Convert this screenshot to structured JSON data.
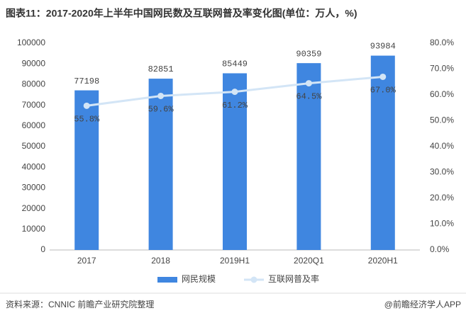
{
  "chart_data": {
    "type": "bar-line",
    "title": "图表11：2017-2020年上半年中国网民数及互联网普及率变化图(单位：万人，%)",
    "categories": [
      "2017",
      "2018",
      "2019H1",
      "2020Q1",
      "2020H1"
    ],
    "series": [
      {
        "name": "网民规模",
        "type": "bar",
        "color": "#3f86e0",
        "values": [
          77198,
          82851,
          85449,
          90359,
          93984
        ]
      },
      {
        "name": "互联网普及率",
        "type": "line",
        "axis": "y2",
        "color": "#d3e5f6",
        "values": [
          55.8,
          59.6,
          61.2,
          64.5,
          67.0
        ],
        "value_labels": [
          "55.8%",
          "59.6%",
          "61.2%",
          "64.5%",
          "67.0%"
        ]
      }
    ],
    "ylim": [
      0,
      100000
    ],
    "yticks": [
      0,
      10000,
      20000,
      30000,
      40000,
      50000,
      60000,
      70000,
      80000,
      90000,
      100000
    ],
    "y2lim": [
      0,
      80
    ],
    "y2ticks": [
      {
        "value": 0,
        "label": "0.0%"
      },
      {
        "value": 10,
        "label": "10.0%"
      },
      {
        "value": 20,
        "label": "20.0%"
      },
      {
        "value": 30,
        "label": "30.0%"
      },
      {
        "value": 40,
        "label": "40.0%"
      },
      {
        "value": 50,
        "label": "50.0%"
      },
      {
        "value": 60,
        "label": "60.0%"
      },
      {
        "value": 70,
        "label": "70.0%"
      },
      {
        "value": 80,
        "label": "80.0%"
      }
    ],
    "grid": false,
    "legend": "bottom",
    "source": "资料来源：CNNIC 前瞻产业研究院整理",
    "brand": "@前瞻经济学人APP"
  }
}
